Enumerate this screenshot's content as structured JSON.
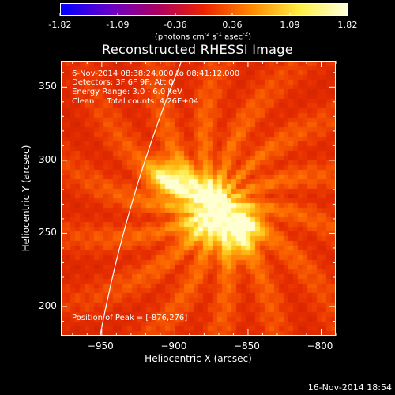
{
  "colorbar": {
    "tick_labels": [
      "-1.82",
      "-1.09",
      "-0.36",
      "0.36",
      "1.09",
      "1.82"
    ],
    "tick_values": [
      -1.82,
      -1.09,
      -0.36,
      0.36,
      1.09,
      1.82
    ],
    "units_main": "(photons cm",
    "units_exp1": "-2",
    "units_mid": " s",
    "units_exp2": "-1",
    "units_end": " asec",
    "units_exp3": "-2",
    "units_close": ")",
    "colors": [
      "#0000ff",
      "#6600cc",
      "#aa0066",
      "#ee2200",
      "#ff8800",
      "#ffee44",
      "#ffffdd"
    ]
  },
  "title": "Reconstructed RHESSI Image",
  "info": {
    "line1": "6-Nov-2014 08:38:24.000 to 08:41:12.000",
    "line2": "Detectors: 3F 6F 9F, Att 0",
    "line3": "Energy Range: 3.0 - 6.0 keV",
    "line4": "Clean     Total counts: 4.26E+04",
    "peak": "Position of Peak = [-876,276]"
  },
  "axes": {
    "xlabel": "Heliocentric X (arcsec)",
    "ylabel": "Heliocentric Y (arcsec)",
    "xlim": [
      -978,
      -790
    ],
    "ylim": [
      180,
      368
    ],
    "xticks": [
      -950,
      -900,
      -850,
      -800
    ],
    "xtick_labels": [
      "−950",
      "−900",
      "−850",
      "−800"
    ],
    "yticks": [
      200,
      250,
      300,
      350
    ],
    "ytick_labels": [
      "200",
      "250",
      "300",
      "350"
    ]
  },
  "image": {
    "peak_position": [
      -876,
      276
    ],
    "sources": [
      {
        "x": -876,
        "y": 276,
        "amp": 1.0
      },
      {
        "x": -896,
        "y": 283,
        "amp": 0.75
      },
      {
        "x": -872,
        "y": 255,
        "amp": 0.5
      },
      {
        "x": -886,
        "y": 255,
        "amp": 0.55
      },
      {
        "x": -852,
        "y": 252,
        "amp": 0.8
      },
      {
        "x": -858,
        "y": 264,
        "amp": 0.5
      },
      {
        "x": -908,
        "y": 290,
        "amp": 0.6
      },
      {
        "x": -860,
        "y": 240,
        "amp": 0.35
      }
    ],
    "background": 0.5,
    "limb_color": "#ffffff"
  },
  "footer": "16-Nov-2014 18:54"
}
